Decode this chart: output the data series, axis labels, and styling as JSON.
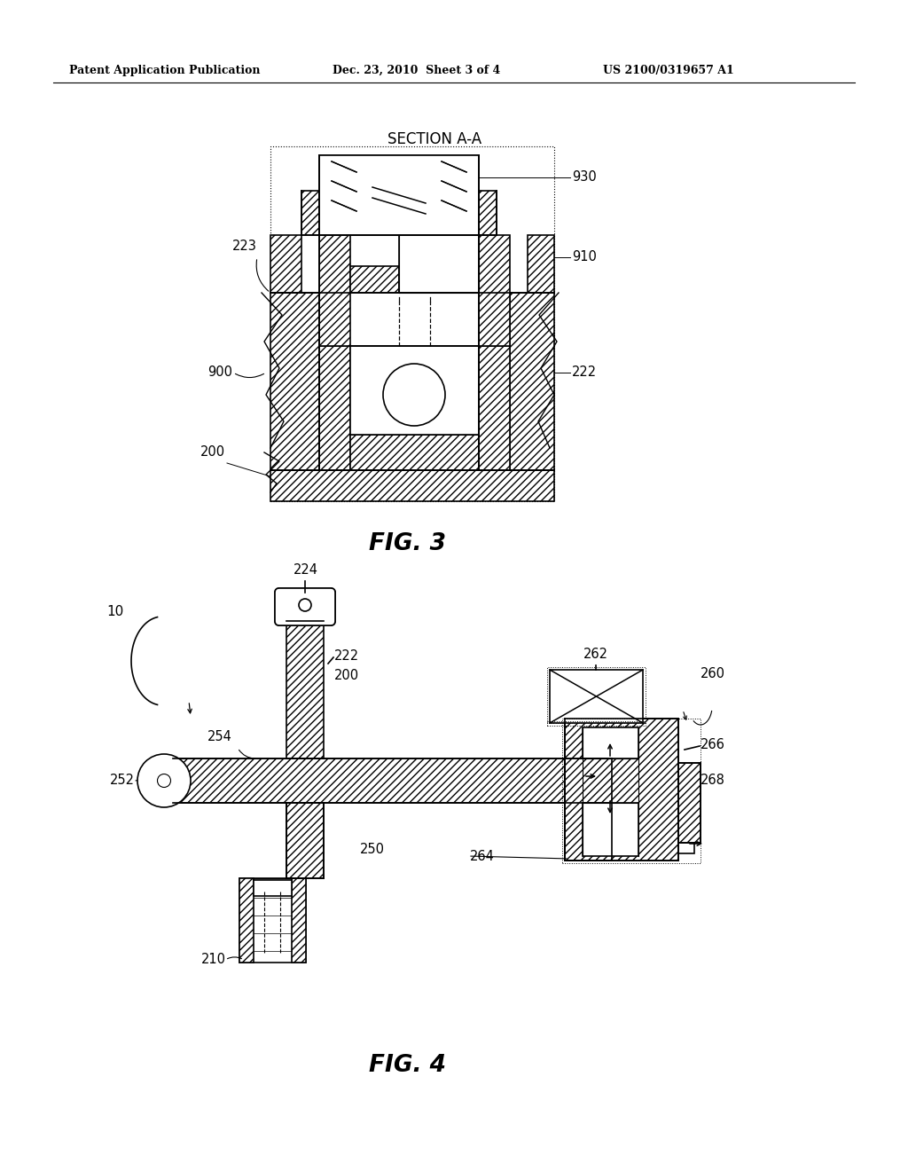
{
  "background_color": "#ffffff",
  "line_color": "#000000",
  "header_left": "Patent Application Publication",
  "header_center": "Dec. 23, 2010  Sheet 3 of 4",
  "header_right": "US 2100/0319657 A1",
  "fig3_title": "SECTION A-A",
  "fig3_label": "FIG. 3",
  "fig4_label": "FIG. 4"
}
